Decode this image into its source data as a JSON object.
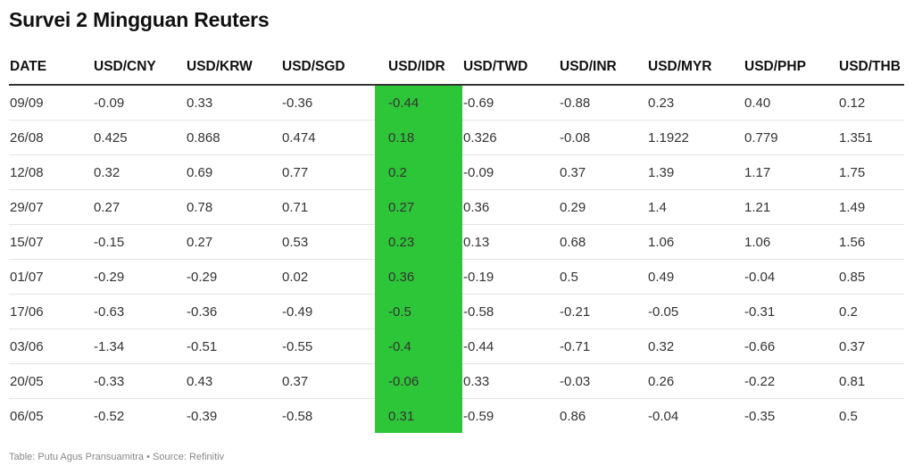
{
  "title": "Survei 2 Mingguan Reuters",
  "highlight_color": "#2ec639",
  "table": {
    "headers": [
      "DATE",
      "USD/CNY",
      "USD/KRW",
      "USD/SGD",
      "USD/IDR",
      "USD/TWD",
      "USD/INR",
      "USD/MYR",
      "USD/PHP",
      "USD/THB"
    ],
    "highlight_column": "USD/IDR",
    "rows": [
      [
        "09/09",
        "-0.09",
        "0.33",
        "-0.36",
        "-0.44",
        "-0.69",
        "-0.88",
        "0.23",
        "0.40",
        "0.12"
      ],
      [
        "26/08",
        "0.425",
        "0.868",
        "0.474",
        "0.18",
        "0.326",
        "-0.08",
        "1.1922",
        "0.779",
        "1.351"
      ],
      [
        "12/08",
        "0.32",
        "0.69",
        "0.77",
        "0.2",
        "-0.09",
        "0.37",
        "1.39",
        "1.17",
        "1.75"
      ],
      [
        "29/07",
        "0.27",
        "0.78",
        "0.71",
        "0.27",
        "0.36",
        "0.29",
        "1.4",
        "1.21",
        "1.49"
      ],
      [
        "15/07",
        "-0.15",
        "0.27",
        "0.53",
        "0.23",
        "0.13",
        "0.68",
        "1.06",
        "1.06",
        "1.56"
      ],
      [
        "01/07",
        "-0.29",
        "-0.29",
        "0.02",
        "0.36",
        "-0.19",
        "0.5",
        "0.49",
        "-0.04",
        "0.85"
      ],
      [
        "17/06",
        "-0.63",
        "-0.36",
        "-0.49",
        "-0.5",
        "-0.58",
        "-0.21",
        "-0.05",
        "-0.31",
        "0.2"
      ],
      [
        "03/06",
        "-1.34",
        "-0.51",
        "-0.55",
        "-0.4",
        "-0.44",
        "-0.71",
        "0.32",
        "-0.66",
        "0.37"
      ],
      [
        "20/05",
        "-0.33",
        "0.43",
        "0.37",
        "-0.06",
        "0.33",
        "-0.03",
        "0.26",
        "-0.22",
        "0.81"
      ],
      [
        "06/05",
        "-0.52",
        "-0.39",
        "-0.58",
        "0.31",
        "-0.59",
        "0.86",
        "-0.04",
        "-0.35",
        "0.5"
      ]
    ]
  },
  "footer": "Table: Putu Agus Pransuamitra • Source: Refinitiv"
}
